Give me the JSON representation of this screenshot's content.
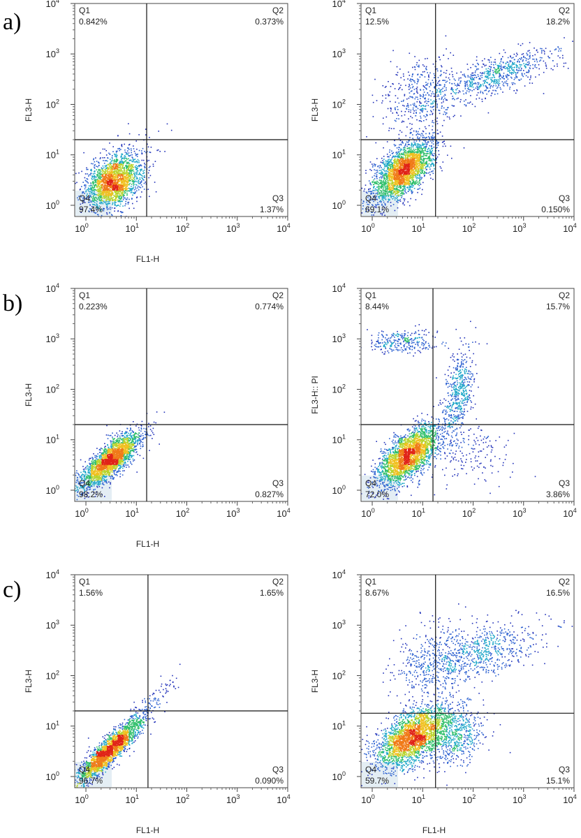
{
  "row_labels": [
    "a)",
    "b)",
    "c)"
  ],
  "chart_data": [
    {
      "type": "scatter",
      "row": "a)",
      "column": "left",
      "xlabel": "FL1-H",
      "ylabel": "FL3-H",
      "xscale": "log",
      "yscale": "log",
      "xlim": [
        0.6,
        10000
      ],
      "ylim": [
        0.6,
        10000
      ],
      "x_ticks": [
        "10",
        "10",
        "10",
        "10",
        "10"
      ],
      "y_ticks": [
        "10",
        "10",
        "10",
        "10",
        "10"
      ],
      "tick_exponents": [
        "0",
        "1",
        "2",
        "3",
        "4"
      ],
      "gate": {
        "x": 16,
        "y": 20
      },
      "quadrants": [
        {
          "name": "Q1",
          "value": "0.842%"
        },
        {
          "name": "Q2",
          "value": "0.373%"
        },
        {
          "name": "Q3",
          "value": "1.37%"
        },
        {
          "name": "Q4",
          "value": "97.4%"
        }
      ],
      "populations": [
        {
          "cx": 3.5,
          "cy": 3,
          "sx": 0.28,
          "sy": 0.26,
          "rho": 0.35,
          "weight": 0.96
        },
        {
          "cx": 6,
          "cy": 8,
          "sx": 0.35,
          "sy": 0.32,
          "rho": 0.3,
          "weight": 0.04
        }
      ],
      "n_events": 2200
    },
    {
      "type": "scatter",
      "row": "a)",
      "column": "right",
      "xlabel": "",
      "ylabel": "FL3-H",
      "xscale": "log",
      "yscale": "log",
      "xlim": [
        0.6,
        10000
      ],
      "ylim": [
        0.6,
        10000
      ],
      "x_ticks": [
        "10",
        "10",
        "10",
        "10",
        "10"
      ],
      "y_ticks": [
        "10",
        "10",
        "10",
        "10",
        "10"
      ],
      "tick_exponents": [
        "0",
        "1",
        "2",
        "3",
        "4"
      ],
      "gate": {
        "x": 18,
        "y": 20
      },
      "quadrants": [
        {
          "name": "Q1",
          "value": "12.5%"
        },
        {
          "name": "Q2",
          "value": "18.2%"
        },
        {
          "name": "Q3",
          "value": "0.150%"
        },
        {
          "name": "Q4",
          "value": "69.1%"
        }
      ],
      "populations": [
        {
          "cx": 4,
          "cy": 5,
          "sx": 0.3,
          "sy": 0.3,
          "rho": 0.6,
          "weight": 0.69
        },
        {
          "cx": 10,
          "cy": 150,
          "sx": 0.4,
          "sy": 0.4,
          "rho": 0.2,
          "weight": 0.13
        },
        {
          "cx": 300,
          "cy": 400,
          "sx": 0.55,
          "sy": 0.25,
          "rho": 0.7,
          "weight": 0.18
        }
      ],
      "n_events": 3800
    },
    {
      "type": "scatter",
      "row": "b)",
      "column": "left",
      "xlabel": "FL1-H",
      "ylabel": "FL3-H",
      "xscale": "log",
      "yscale": "log",
      "xlim": [
        0.6,
        10000
      ],
      "ylim": [
        0.6,
        10000
      ],
      "x_ticks": [
        "10",
        "10",
        "10",
        "10",
        "10"
      ],
      "y_ticks": [
        "10",
        "10",
        "10",
        "10",
        "10"
      ],
      "tick_exponents": [
        "0",
        "1",
        "2",
        "3",
        "4"
      ],
      "gate": {
        "x": 16,
        "y": 20
      },
      "quadrants": [
        {
          "name": "Q1",
          "value": "0.223%"
        },
        {
          "name": "Q2",
          "value": "0.774%"
        },
        {
          "name": "Q3",
          "value": "0.827%"
        },
        {
          "name": "Q4",
          "value": "98.2%"
        }
      ],
      "populations": [
        {
          "cx": 3,
          "cy": 4,
          "sx": 0.3,
          "sy": 0.28,
          "rho": 0.8,
          "weight": 1.0
        }
      ],
      "n_events": 2400
    },
    {
      "type": "scatter",
      "row": "b)",
      "column": "right",
      "xlabel": "",
      "ylabel": "FL3-H:: PI",
      "xscale": "log",
      "yscale": "log",
      "xlim": [
        0.6,
        10000
      ],
      "ylim": [
        0.6,
        10000
      ],
      "x_ticks": [
        "10",
        "10",
        "10",
        "10",
        "10"
      ],
      "y_ticks": [
        "10",
        "10",
        "10",
        "10",
        "10"
      ],
      "tick_exponents": [
        "0",
        "1",
        "2",
        "3",
        "4"
      ],
      "gate": {
        "x": 16,
        "y": 20
      },
      "quadrants": [
        {
          "name": "Q1",
          "value": "8.44%"
        },
        {
          "name": "Q2",
          "value": "15.7%"
        },
        {
          "name": "Q3",
          "value": "3.86%"
        },
        {
          "name": "Q4",
          "value": "72.0%"
        }
      ],
      "populations": [
        {
          "cx": 5,
          "cy": 5,
          "sx": 0.3,
          "sy": 0.3,
          "rho": 0.65,
          "weight": 0.72
        },
        {
          "cx": 4,
          "cy": 900,
          "sx": 0.35,
          "sy": 0.12,
          "rho": 0.0,
          "weight": 0.08
        },
        {
          "cx": 50,
          "cy": 80,
          "sx": 0.15,
          "sy": 0.45,
          "rho": 0.4,
          "weight": 0.15
        },
        {
          "cx": 60,
          "cy": 6,
          "sx": 0.5,
          "sy": 0.35,
          "rho": 0.0,
          "weight": 0.05
        }
      ],
      "n_events": 3600
    },
    {
      "type": "scatter",
      "row": "c)",
      "column": "left",
      "xlabel": "FL1-H",
      "ylabel": "FL3-H",
      "xscale": "log",
      "yscale": "log",
      "xlim": [
        0.6,
        10000
      ],
      "ylim": [
        0.6,
        10000
      ],
      "x_ticks": [
        "10",
        "10",
        "10",
        "10",
        "10"
      ],
      "y_ticks": [
        "10",
        "10",
        "10",
        "10",
        "10"
      ],
      "tick_exponents": [
        "0",
        "1",
        "2",
        "3",
        "4"
      ],
      "gate": {
        "x": 17,
        "y": 20
      },
      "quadrants": [
        {
          "name": "Q1",
          "value": "1.56%"
        },
        {
          "name": "Q2",
          "value": "1.65%"
        },
        {
          "name": "Q3",
          "value": "0.090%"
        },
        {
          "name": "Q4",
          "value": "96.7%"
        }
      ],
      "populations": [
        {
          "cx": 3,
          "cy": 3.5,
          "sx": 0.32,
          "sy": 0.32,
          "rho": 0.9,
          "weight": 0.97
        },
        {
          "cx": 25,
          "cy": 40,
          "sx": 0.25,
          "sy": 0.25,
          "rho": 0.85,
          "weight": 0.03
        }
      ],
      "n_events": 2400
    },
    {
      "type": "scatter",
      "row": "c)",
      "column": "right",
      "xlabel": "FL1-H",
      "ylabel": "FL3-H",
      "xscale": "log",
      "yscale": "log",
      "xlim": [
        0.6,
        10000
      ],
      "ylim": [
        0.6,
        10000
      ],
      "x_ticks": [
        "10",
        "10",
        "10",
        "10",
        "10"
      ],
      "y_ticks": [
        "10",
        "10",
        "10",
        "10",
        "10"
      ],
      "tick_exponents": [
        "0",
        "1",
        "2",
        "3",
        "4"
      ],
      "gate": {
        "x": 18,
        "y": 18
      },
      "quadrants": [
        {
          "name": "Q1",
          "value": "8.67%"
        },
        {
          "name": "Q2",
          "value": "16.5%"
        },
        {
          "name": "Q3",
          "value": "15.1%"
        },
        {
          "name": "Q4",
          "value": "59.7%"
        }
      ],
      "populations": [
        {
          "cx": 6,
          "cy": 6,
          "sx": 0.35,
          "sy": 0.3,
          "rho": 0.55,
          "weight": 0.6
        },
        {
          "cx": 15,
          "cy": 200,
          "sx": 0.35,
          "sy": 0.35,
          "rho": 0.2,
          "weight": 0.09
        },
        {
          "cx": 150,
          "cy": 300,
          "sx": 0.6,
          "sy": 0.3,
          "rho": 0.5,
          "weight": 0.16
        },
        {
          "cx": 40,
          "cy": 7,
          "sx": 0.3,
          "sy": 0.3,
          "rho": 0.1,
          "weight": 0.15
        }
      ],
      "n_events": 4200
    }
  ]
}
